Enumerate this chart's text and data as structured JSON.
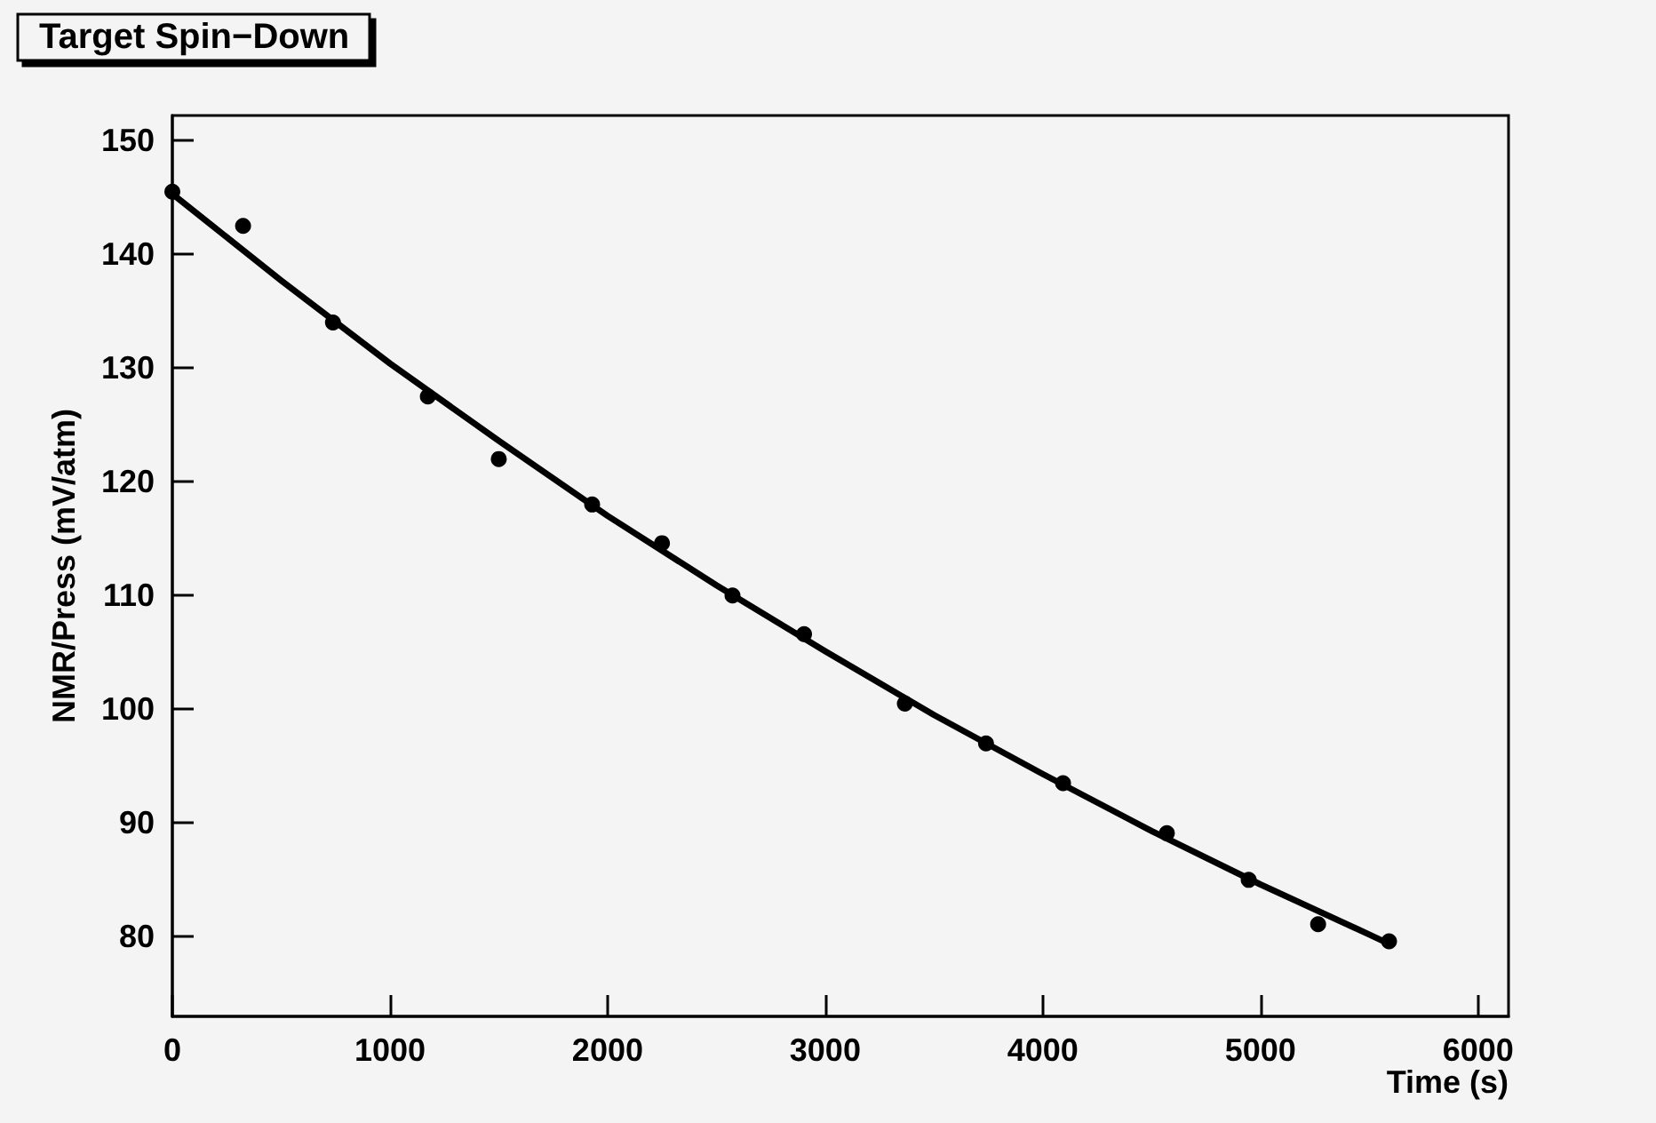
{
  "chart_data": {
    "type": "scatter",
    "title": "Target Spin−Down",
    "xlabel": "Time (s)",
    "ylabel": "NMR/Press (mV/atm)",
    "xlim": [
      0,
      6140
    ],
    "xticks": [
      0,
      1000,
      2000,
      3000,
      4000,
      5000,
      6000
    ],
    "ylim": [
      73,
      152.2
    ],
    "yticks": [
      80,
      90,
      100,
      110,
      120,
      130,
      140,
      150
    ],
    "grid": false,
    "series": [
      {
        "marker": "circle",
        "color": "#000000",
        "x": [
          0,
          325,
          738,
          1174,
          1500,
          1929,
          2250,
          2574,
          2903,
          3366,
          3739,
          4093,
          4570,
          4946,
          5265,
          5591
        ],
        "values": [
          145.5,
          142.5,
          134.0,
          127.5,
          122.0,
          118.0,
          114.6,
          110.0,
          106.6,
          100.5,
          97.0,
          93.5,
          89.1,
          85.0,
          81.1,
          79.6
        ]
      },
      {
        "type": "line",
        "marker": "none",
        "line_style": "solid",
        "color": "#000000",
        "x": [
          0,
          500,
          1000,
          1500,
          2000,
          2500,
          3000,
          3500,
          4000,
          4500,
          5000,
          5500,
          5600
        ],
        "values": [
          145.3,
          137.7,
          130.4,
          123.6,
          117.0,
          110.9,
          105.1,
          99.5,
          94.3,
          89.3,
          84.6,
          80.2,
          79.3
        ]
      }
    ]
  }
}
